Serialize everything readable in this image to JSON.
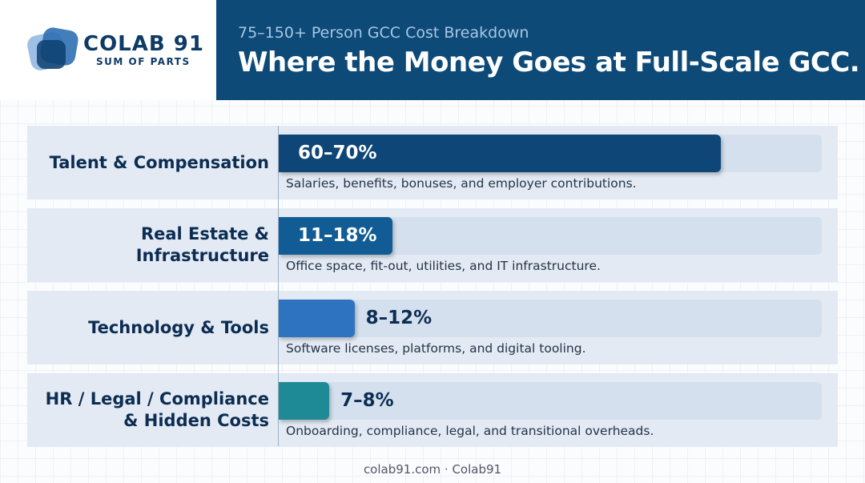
{
  "header": {
    "brand": "COLAB 91",
    "tagline": "SUM OF PARTS",
    "subtitle": "75–150+ Person GCC Cost Breakdown",
    "title": "Where the Money Goes at Full-Scale GCC."
  },
  "chart_data": {
    "type": "bar",
    "categories": [
      "Talent & Compensation",
      "Real Estate & Infrastructure",
      "Technology & Tools",
      "HR / Legal / Compliance & Hidden Costs"
    ],
    "ranges": [
      [
        60,
        70
      ],
      [
        11,
        18
      ],
      [
        8,
        12
      ],
      [
        7,
        8
      ]
    ],
    "value_labels": [
      "60–70%",
      "11–18%",
      "8–12%",
      "7–8%"
    ],
    "descriptions": [
      "Salaries, benefits, bonuses, and employer contributions.",
      "Office space, fit-out, utilities, and IT infrastructure.",
      "Software licenses, platforms, and digital tooling.",
      "Onboarding, compliance, legal, and transitional overheads."
    ],
    "colors": [
      "#0d4677",
      "#115c95",
      "#2e73bf",
      "#1e8a95"
    ],
    "xlim": [
      0,
      86
    ]
  },
  "footer": "colab91.com · Colab91"
}
